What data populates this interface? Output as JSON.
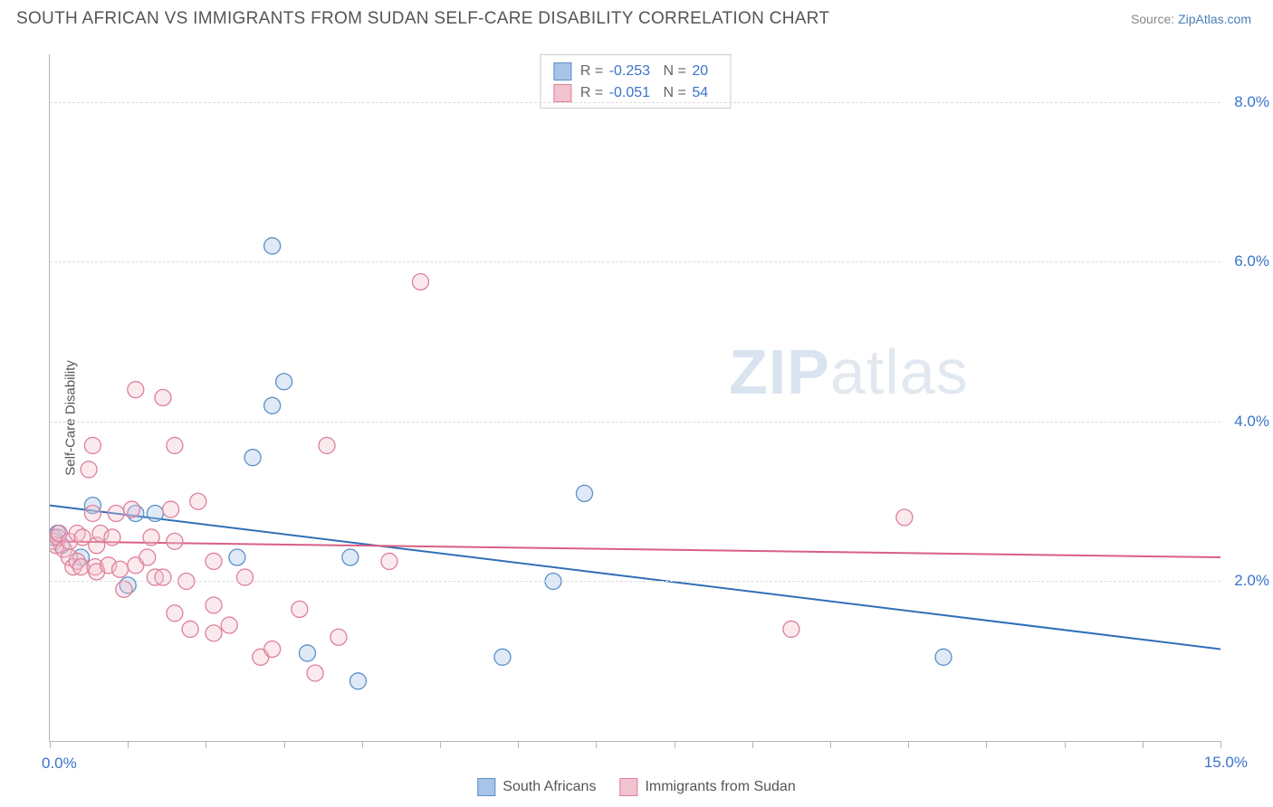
{
  "title": "SOUTH AFRICAN VS IMMIGRANTS FROM SUDAN SELF-CARE DISABILITY CORRELATION CHART",
  "source_prefix": "Source: ",
  "source_link": "ZipAtlas.com",
  "ylabel": "Self-Care Disability",
  "watermark_bold": "ZIP",
  "watermark_rest": "atlas",
  "chart": {
    "type": "scatter",
    "xlim": [
      0,
      15
    ],
    "ylim": [
      0,
      8.6
    ],
    "x_tick_positions": [
      0,
      1,
      2,
      3,
      4,
      5,
      6,
      7,
      8,
      9,
      10,
      11,
      12,
      13,
      14,
      15
    ],
    "x_axis_labels": [
      {
        "x": 0,
        "text": "0.0%"
      },
      {
        "x": 15,
        "text": "15.0%"
      }
    ],
    "y_gridlines": [
      2,
      4,
      6,
      8
    ],
    "y_axis_labels": [
      {
        "y": 2,
        "text": "2.0%"
      },
      {
        "y": 4,
        "text": "4.0%"
      },
      {
        "y": 6,
        "text": "6.0%"
      },
      {
        "y": 8,
        "text": "8.0%"
      }
    ],
    "grid_color": "#dcdcdc",
    "axis_color": "#b7b7b7",
    "background_color": "#ffffff",
    "marker_radius": 9,
    "marker_stroke_width": 1.3,
    "marker_fill_opacity": 0.35,
    "trend_line_width": 2,
    "series": [
      {
        "id": "south_africans",
        "label": "South Africans",
        "fill_color": "#a7c4e8",
        "stroke_color": "#5a8fc9",
        "line_color": "#2f6fb8",
        "R": "-0.253",
        "N": "20",
        "trend": {
          "x1": 0,
          "y1": 2.95,
          "x2": 15,
          "y2": 1.15
        },
        "points": [
          [
            0.05,
            2.55
          ],
          [
            0.1,
            2.6
          ],
          [
            0.15,
            2.45
          ],
          [
            0.4,
            2.3
          ],
          [
            0.55,
            2.95
          ],
          [
            1.0,
            1.95
          ],
          [
            1.1,
            2.85
          ],
          [
            1.35,
            2.85
          ],
          [
            2.4,
            2.3
          ],
          [
            2.6,
            3.55
          ],
          [
            2.85,
            4.2
          ],
          [
            2.85,
            6.2
          ],
          [
            3.0,
            4.5
          ],
          [
            3.3,
            1.1
          ],
          [
            3.85,
            2.3
          ],
          [
            3.95,
            0.75
          ],
          [
            5.8,
            1.05
          ],
          [
            6.45,
            2.0
          ],
          [
            6.85,
            3.1
          ],
          [
            11.45,
            1.05
          ]
        ]
      },
      {
        "id": "immigrants_sudan",
        "label": "Immigrants from Sudan",
        "fill_color": "#f1c2cf",
        "stroke_color": "#df7f9a",
        "line_color": "#d85f83",
        "R": "-0.051",
        "N": "54",
        "trend": {
          "x1": 0,
          "y1": 2.5,
          "x2": 15,
          "y2": 2.3
        },
        "points": [
          [
            0.05,
            2.5
          ],
          [
            0.08,
            2.45
          ],
          [
            0.1,
            2.55
          ],
          [
            0.12,
            2.6
          ],
          [
            0.18,
            2.4
          ],
          [
            0.25,
            2.3
          ],
          [
            0.25,
            2.5
          ],
          [
            0.3,
            2.18
          ],
          [
            0.35,
            2.6
          ],
          [
            0.35,
            2.25
          ],
          [
            0.4,
            2.18
          ],
          [
            0.42,
            2.55
          ],
          [
            0.5,
            3.4
          ],
          [
            0.55,
            3.7
          ],
          [
            0.55,
            2.85
          ],
          [
            0.58,
            2.18
          ],
          [
            0.6,
            2.45
          ],
          [
            0.6,
            2.12
          ],
          [
            0.65,
            2.6
          ],
          [
            0.75,
            2.2
          ],
          [
            0.8,
            2.55
          ],
          [
            0.85,
            2.85
          ],
          [
            0.9,
            2.15
          ],
          [
            0.95,
            1.9
          ],
          [
            1.05,
            2.9
          ],
          [
            1.1,
            4.4
          ],
          [
            1.1,
            2.2
          ],
          [
            1.25,
            2.3
          ],
          [
            1.3,
            2.55
          ],
          [
            1.35,
            2.05
          ],
          [
            1.45,
            4.3
          ],
          [
            1.45,
            2.05
          ],
          [
            1.55,
            2.9
          ],
          [
            1.6,
            3.7
          ],
          [
            1.6,
            2.5
          ],
          [
            1.6,
            1.6
          ],
          [
            1.75,
            2.0
          ],
          [
            1.8,
            1.4
          ],
          [
            1.9,
            3.0
          ],
          [
            2.1,
            2.25
          ],
          [
            2.1,
            1.35
          ],
          [
            2.1,
            1.7
          ],
          [
            2.3,
            1.45
          ],
          [
            2.5,
            2.05
          ],
          [
            2.7,
            1.05
          ],
          [
            2.85,
            1.15
          ],
          [
            3.2,
            1.65
          ],
          [
            3.4,
            0.85
          ],
          [
            3.55,
            3.7
          ],
          [
            3.7,
            1.3
          ],
          [
            4.35,
            2.25
          ],
          [
            4.75,
            5.75
          ],
          [
            9.5,
            1.4
          ],
          [
            10.95,
            2.8
          ]
        ]
      }
    ]
  },
  "legend_top": {
    "R_label": "R =",
    "N_label": "N ="
  }
}
